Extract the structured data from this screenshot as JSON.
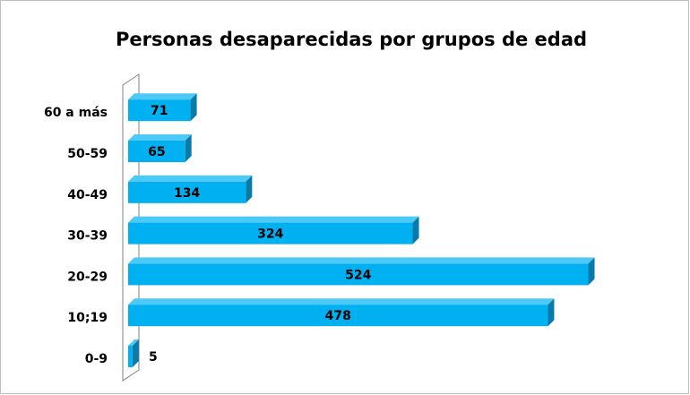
{
  "chart_data": {
    "type": "bar",
    "orientation": "horizontal",
    "title": "Personas desaparecidas por grupos de edad",
    "categories": [
      "0-9",
      "10;19",
      "20-29",
      "30-39",
      "40-49",
      "50-59",
      "60 a más"
    ],
    "values": [
      5,
      478,
      524,
      324,
      134,
      65,
      71
    ],
    "color": "#00b0f0",
    "xlim": [
      0,
      600
    ]
  }
}
